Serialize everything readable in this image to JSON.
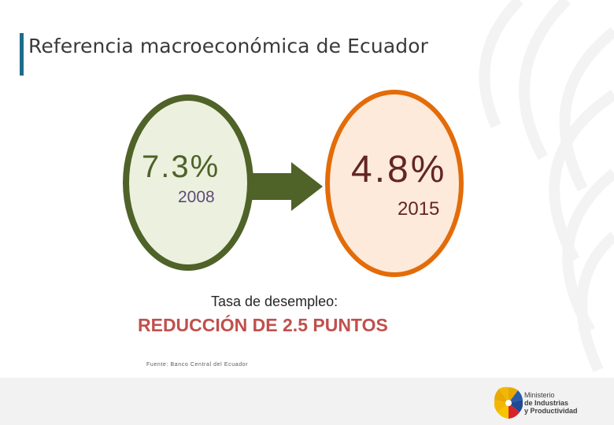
{
  "slide": {
    "title": "Referencia macroeconómica de Ecuador",
    "left_value": "7.3%",
    "left_year": "2008",
    "right_value": "4.8%",
    "right_year": "2015",
    "indicator_label": "Tasa de desempleo:",
    "headline": "REDUCCIÓN DE 2.5 PUNTOS",
    "source": "Fuente: Banco Central del Ecuador"
  },
  "logo": {
    "line1": "Ministerio",
    "line2": "de Industrias",
    "line3": "y Productividad"
  },
  "colors": {
    "left_circle_border": "#4f6228",
    "left_circle_fill": "#ebf1de",
    "right_circle_border": "#e36c09",
    "right_circle_fill": "#fdeada",
    "arrow": "#4f6228",
    "headline": "#c0504d"
  }
}
